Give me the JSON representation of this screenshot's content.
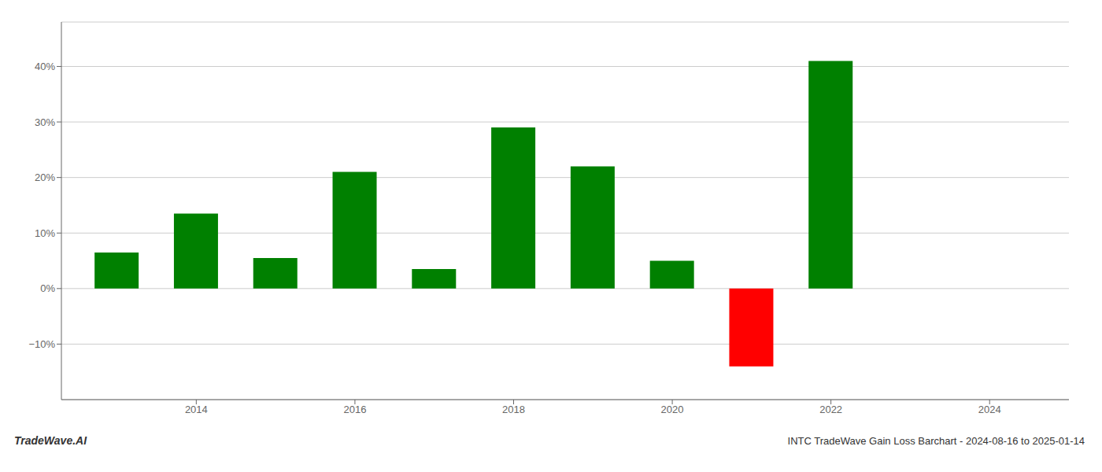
{
  "chart_data": {
    "type": "bar",
    "x": [
      2013,
      2014,
      2015,
      2016,
      2017,
      2018,
      2019,
      2020,
      2021,
      2022
    ],
    "values": [
      6.5,
      13.5,
      5.5,
      21.0,
      3.5,
      29.0,
      22.0,
      5.0,
      -14.0,
      41.0
    ],
    "colors": [
      "#008000",
      "#008000",
      "#008000",
      "#008000",
      "#008000",
      "#008000",
      "#008000",
      "#008000",
      "#ff0000",
      "#008000"
    ],
    "xlim": [
      2012.3,
      2025.0
    ],
    "xticks": [
      2014,
      2016,
      2018,
      2020,
      2022,
      2024
    ],
    "ylim": [
      -20,
      48
    ],
    "yticks": [
      {
        "value": -10,
        "label": "−10%"
      },
      {
        "value": 0,
        "label": "0%"
      },
      {
        "value": 10,
        "label": "10%"
      },
      {
        "value": 20,
        "label": "20%"
      },
      {
        "value": 30,
        "label": "30%"
      },
      {
        "value": 40,
        "label": "40%"
      }
    ],
    "grid": true,
    "annotations": [
      "TradeWave.AI",
      "INTC TradeWave Gain Loss Barchart - 2024-08-16 to 2025-01-14"
    ]
  }
}
